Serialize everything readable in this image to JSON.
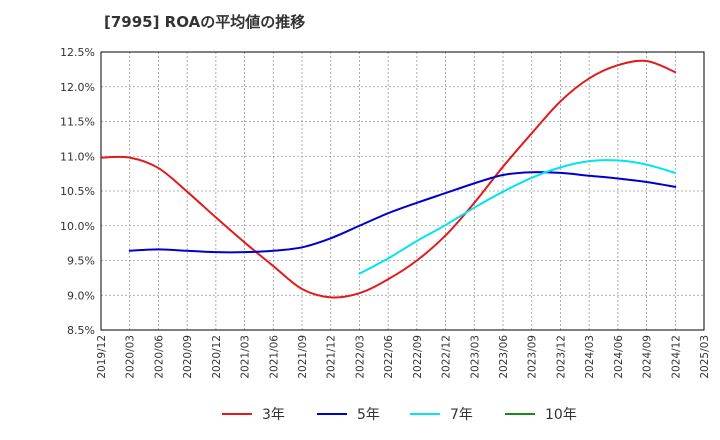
{
  "chart_data": {
    "type": "line",
    "title": "[7995]  ROAの平均値の推移",
    "xlabel": "",
    "ylabel": "",
    "x_ticks": [
      "2019/12",
      "2020/03",
      "2020/06",
      "2020/09",
      "2020/12",
      "2021/03",
      "2021/06",
      "2021/09",
      "2021/12",
      "2022/03",
      "2022/06",
      "2022/09",
      "2022/12",
      "2023/03",
      "2023/06",
      "2023/09",
      "2023/12",
      "2024/03",
      "2024/06",
      "2024/09",
      "2024/12",
      "2025/03"
    ],
    "y_ticks": [
      "8.5%",
      "9.0%",
      "9.5%",
      "10.0%",
      "10.5%",
      "11.0%",
      "11.5%",
      "12.0%",
      "12.5%"
    ],
    "ylim": [
      8.5,
      12.5
    ],
    "grid": true,
    "legend_position": "bottom",
    "series": [
      {
        "name": "3年",
        "color": "#e31a1c",
        "x": [
          "2019/12",
          "2020/03",
          "2020/06",
          "2020/09",
          "2020/12",
          "2021/03",
          "2021/06",
          "2021/09",
          "2021/12",
          "2022/03",
          "2022/06",
          "2022/09",
          "2022/12",
          "2023/03",
          "2023/06",
          "2023/09",
          "2023/12",
          "2024/03",
          "2024/06",
          "2024/09",
          "2024/12"
        ],
        "values": [
          10.98,
          10.98,
          10.83,
          10.49,
          10.12,
          9.76,
          9.42,
          9.09,
          8.97,
          9.03,
          9.23,
          9.5,
          9.86,
          10.33,
          10.85,
          11.33,
          11.79,
          12.12,
          12.31,
          12.37,
          12.21
        ]
      },
      {
        "name": "5年",
        "color": "#0000cc",
        "x": [
          "2020/03",
          "2020/06",
          "2020/09",
          "2020/12",
          "2021/03",
          "2021/06",
          "2021/09",
          "2021/12",
          "2022/03",
          "2022/06",
          "2022/09",
          "2022/12",
          "2023/03",
          "2023/06",
          "2023/09",
          "2023/12",
          "2024/03",
          "2024/06",
          "2024/09",
          "2024/12"
        ],
        "values": [
          9.64,
          9.66,
          9.64,
          9.62,
          9.62,
          9.64,
          9.69,
          9.82,
          10.0,
          10.18,
          10.33,
          10.47,
          10.61,
          10.73,
          10.77,
          10.76,
          10.72,
          10.68,
          10.63,
          10.56
        ]
      },
      {
        "name": "7年",
        "color": "#00e5ee",
        "x": [
          "2022/03",
          "2022/06",
          "2022/09",
          "2022/12",
          "2023/03",
          "2023/06",
          "2023/09",
          "2023/12",
          "2024/03",
          "2024/06",
          "2024/09",
          "2024/12"
        ],
        "values": [
          9.31,
          9.53,
          9.78,
          10.01,
          10.26,
          10.49,
          10.69,
          10.84,
          10.93,
          10.94,
          10.88,
          10.76
        ]
      },
      {
        "name": "10年",
        "color": "#1a8a1a",
        "x": [],
        "values": []
      }
    ]
  }
}
